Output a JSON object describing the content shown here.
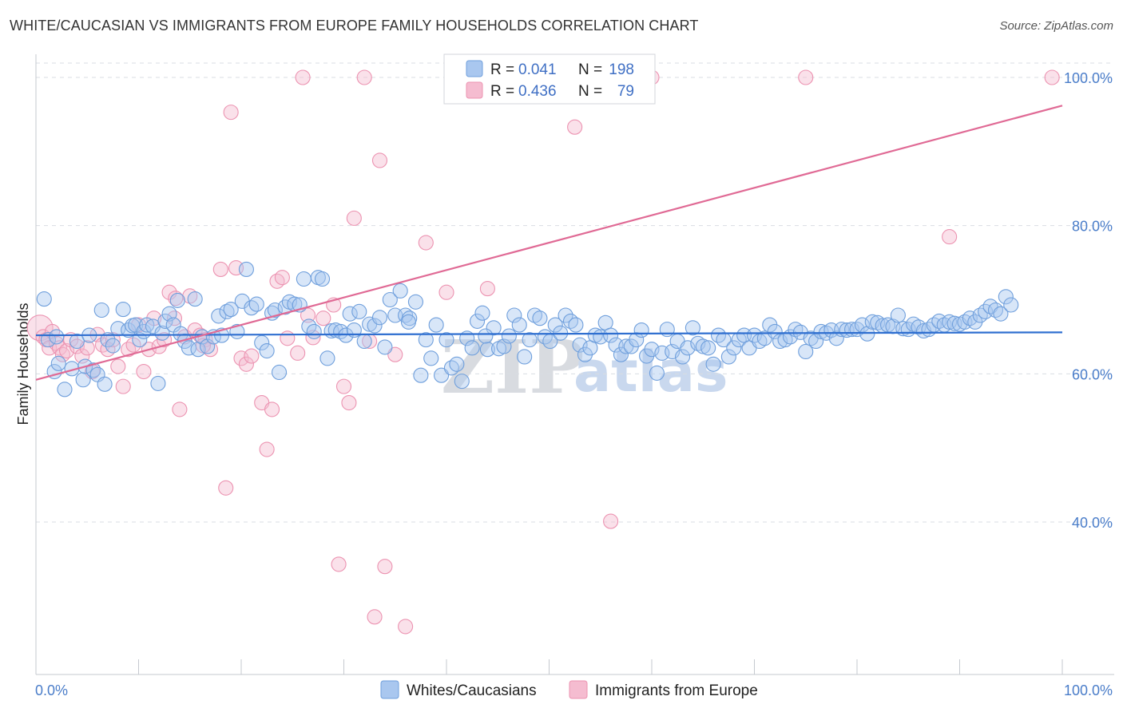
{
  "title": "WHITE/CAUCASIAN VS IMMIGRANTS FROM EUROPE FAMILY HOUSEHOLDS CORRELATION CHART",
  "source": "Source: ZipAtlas.com",
  "watermark": {
    "zip": "ZIP",
    "atlas": "atlas"
  },
  "colors": {
    "blue_fill": "#a9c7ef",
    "blue_stroke": "#6f9fdc",
    "blue_line": "#2f6fd0",
    "pink_fill": "#f5bcd0",
    "pink_stroke": "#ec93b1",
    "pink_line": "#e06a95",
    "grid": "#d9dde3",
    "tick_text": "#4a7dc9"
  },
  "legend": {
    "r_label": "R =",
    "n_label": "N =",
    "series1": {
      "r": "0.041",
      "n": "198"
    },
    "series2": {
      "r": "0.436",
      "n": "79"
    }
  },
  "chart_data": {
    "type": "scatter",
    "title": "WHITE/CAUCASIAN VS IMMIGRANTS FROM EUROPE FAMILY HOUSEHOLDS CORRELATION CHART",
    "xlabel": "",
    "ylabel": "Family Households",
    "xlim": [
      0,
      100
    ],
    "ylim": [
      20,
      102
    ],
    "x_tick_labels": [
      "0.0%",
      "100.0%"
    ],
    "y_tick_labels": [
      "100.0%",
      "80.0%",
      "60.0%",
      "40.0%"
    ],
    "y_ticks": [
      100,
      80,
      60,
      40
    ],
    "grid": true,
    "legend_position": "top-center and bottom",
    "series": [
      {
        "name": "Whites/Caucasians",
        "r": 0.041,
        "n": 198,
        "trend": {
          "x": [
            0,
            100
          ],
          "y": [
            65.2,
            65.6
          ]
        },
        "points": [
          [
            0.8,
            70.1
          ],
          [
            1.2,
            64.6
          ],
          [
            1.8,
            60.3
          ],
          [
            2.0,
            65.0
          ],
          [
            2.2,
            61.4
          ],
          [
            2.8,
            57.9
          ],
          [
            3.5,
            60.7
          ],
          [
            4.0,
            64.4
          ],
          [
            4.6,
            59.2
          ],
          [
            4.8,
            61.0
          ],
          [
            5.2,
            65.2
          ],
          [
            5.6,
            60.5
          ],
          [
            6.0,
            59.9
          ],
          [
            6.4,
            68.6
          ],
          [
            6.7,
            58.6
          ],
          [
            7.0,
            64.6
          ],
          [
            7.5,
            63.8
          ],
          [
            8.0,
            66.1
          ],
          [
            8.5,
            68.7
          ],
          [
            9.0,
            65.9
          ],
          [
            9.4,
            66.5
          ],
          [
            9.7,
            66.6
          ],
          [
            10.1,
            64.6
          ],
          [
            10.5,
            65.7
          ],
          [
            10.8,
            66.6
          ],
          [
            11.4,
            66.4
          ],
          [
            11.9,
            58.7
          ],
          [
            12.3,
            65.5
          ],
          [
            12.6,
            67.1
          ],
          [
            13.0,
            68.1
          ],
          [
            13.4,
            66.6
          ],
          [
            13.8,
            69.9
          ],
          [
            14.1,
            65.4
          ],
          [
            14.5,
            64.4
          ],
          [
            14.9,
            63.5
          ],
          [
            15.5,
            70.1
          ],
          [
            15.8,
            63.3
          ],
          [
            16.2,
            65.0
          ],
          [
            16.7,
            63.7
          ],
          [
            17.3,
            65.0
          ],
          [
            17.8,
            67.8
          ],
          [
            18.1,
            65.2
          ],
          [
            18.6,
            68.4
          ],
          [
            19.0,
            68.7
          ],
          [
            19.6,
            65.7
          ],
          [
            20.1,
            69.8
          ],
          [
            20.5,
            74.1
          ],
          [
            21.0,
            68.9
          ],
          [
            21.5,
            69.4
          ],
          [
            22.0,
            64.2
          ],
          [
            22.5,
            63.1
          ],
          [
            23.0,
            68.2
          ],
          [
            23.3,
            68.6
          ],
          [
            23.7,
            60.2
          ],
          [
            24.3,
            69.0
          ],
          [
            24.7,
            69.7
          ],
          [
            25.2,
            69.4
          ],
          [
            25.7,
            69.3
          ],
          [
            26.1,
            72.8
          ],
          [
            26.6,
            66.4
          ],
          [
            27.1,
            65.7
          ],
          [
            27.5,
            73.0
          ],
          [
            27.9,
            72.8
          ],
          [
            28.4,
            62.1
          ],
          [
            28.8,
            65.8
          ],
          [
            29.2,
            65.9
          ],
          [
            29.7,
            65.7
          ],
          [
            30.2,
            65.2
          ],
          [
            30.6,
            68.1
          ],
          [
            31.0,
            65.9
          ],
          [
            31.5,
            68.4
          ],
          [
            32.0,
            64.4
          ],
          [
            32.5,
            66.7
          ],
          [
            33.0,
            66.5
          ],
          [
            33.5,
            67.6
          ],
          [
            34.0,
            63.6
          ],
          [
            34.5,
            70.0
          ],
          [
            35.0,
            67.9
          ],
          [
            35.5,
            71.2
          ],
          [
            36.0,
            67.9
          ],
          [
            36.4,
            67.5
          ],
          [
            37.0,
            69.7
          ],
          [
            37.5,
            59.8
          ],
          [
            38.0,
            64.6
          ],
          [
            38.5,
            62.1
          ],
          [
            39.0,
            66.6
          ],
          [
            39.5,
            59.8
          ],
          [
            40.0,
            64.6
          ],
          [
            40.5,
            60.8
          ],
          [
            41.0,
            61.3
          ],
          [
            41.5,
            59.0
          ],
          [
            42.0,
            64.8
          ],
          [
            42.5,
            63.5
          ],
          [
            43.0,
            67.1
          ],
          [
            43.5,
            68.2
          ],
          [
            44.0,
            63.3
          ],
          [
            44.6,
            66.2
          ],
          [
            45.1,
            63.4
          ],
          [
            45.6,
            63.7
          ],
          [
            46.1,
            65.1
          ],
          [
            46.6,
            67.9
          ],
          [
            47.1,
            66.6
          ],
          [
            47.6,
            62.3
          ],
          [
            48.1,
            64.6
          ],
          [
            48.6,
            67.9
          ],
          [
            49.1,
            67.5
          ],
          [
            49.6,
            65.0
          ],
          [
            50.1,
            64.4
          ],
          [
            50.6,
            66.6
          ],
          [
            51.1,
            65.5
          ],
          [
            51.6,
            67.9
          ],
          [
            52.1,
            67.1
          ],
          [
            52.6,
            66.6
          ],
          [
            53.0,
            63.9
          ],
          [
            53.5,
            62.6
          ],
          [
            54.0,
            63.5
          ],
          [
            54.5,
            65.2
          ],
          [
            55.0,
            65.0
          ],
          [
            55.5,
            66.9
          ],
          [
            56.0,
            65.2
          ],
          [
            56.5,
            63.9
          ],
          [
            57.0,
            62.6
          ],
          [
            57.5,
            63.7
          ],
          [
            58.0,
            63.7
          ],
          [
            58.5,
            64.6
          ],
          [
            59.0,
            65.9
          ],
          [
            59.5,
            62.4
          ],
          [
            60.0,
            63.3
          ],
          [
            60.5,
            60.1
          ],
          [
            61.0,
            62.8
          ],
          [
            61.5,
            66.0
          ],
          [
            62.0,
            63.0
          ],
          [
            62.5,
            64.4
          ],
          [
            63.0,
            62.3
          ],
          [
            63.5,
            63.5
          ],
          [
            64.0,
            66.2
          ],
          [
            64.5,
            64.1
          ],
          [
            65.0,
            63.7
          ],
          [
            65.5,
            63.5
          ],
          [
            66.0,
            61.3
          ],
          [
            66.5,
            65.2
          ],
          [
            67.0,
            64.6
          ],
          [
            67.5,
            62.3
          ],
          [
            68.0,
            63.5
          ],
          [
            68.5,
            64.6
          ],
          [
            69.0,
            65.2
          ],
          [
            69.5,
            63.5
          ],
          [
            70.0,
            65.2
          ],
          [
            70.5,
            64.4
          ],
          [
            71.0,
            64.8
          ],
          [
            71.5,
            66.6
          ],
          [
            72.0,
            65.7
          ],
          [
            72.5,
            64.4
          ],
          [
            73.0,
            64.6
          ],
          [
            73.5,
            65.0
          ],
          [
            74.0,
            66.0
          ],
          [
            74.5,
            65.6
          ],
          [
            75.0,
            63.0
          ],
          [
            75.5,
            64.8
          ],
          [
            76.0,
            64.4
          ],
          [
            76.5,
            65.7
          ],
          [
            77.0,
            65.5
          ],
          [
            77.5,
            65.9
          ],
          [
            78.0,
            64.8
          ],
          [
            78.5,
            66.0
          ],
          [
            79.0,
            65.9
          ],
          [
            79.5,
            66.0
          ],
          [
            80.0,
            66.0
          ],
          [
            80.5,
            66.6
          ],
          [
            81.0,
            65.4
          ],
          [
            81.5,
            67.0
          ],
          [
            82.0,
            66.9
          ],
          [
            82.5,
            66.5
          ],
          [
            83.0,
            66.6
          ],
          [
            83.5,
            66.4
          ],
          [
            84.0,
            67.9
          ],
          [
            84.5,
            66.1
          ],
          [
            85.0,
            66.0
          ],
          [
            85.5,
            66.7
          ],
          [
            86.0,
            66.3
          ],
          [
            86.5,
            65.8
          ],
          [
            87.0,
            66.0
          ],
          [
            87.5,
            66.6
          ],
          [
            88.0,
            67.1
          ],
          [
            88.5,
            66.6
          ],
          [
            89.0,
            67.0
          ],
          [
            89.5,
            66.8
          ],
          [
            90.0,
            66.7
          ],
          [
            90.5,
            67.0
          ],
          [
            91.0,
            67.5
          ],
          [
            91.5,
            67.0
          ],
          [
            92.0,
            67.9
          ],
          [
            92.5,
            68.4
          ],
          [
            93.0,
            69.1
          ],
          [
            93.5,
            68.6
          ],
          [
            94.0,
            68.1
          ],
          [
            94.5,
            70.4
          ],
          [
            95.0,
            69.3
          ],
          [
            36.3,
            67.0
          ],
          [
            43.8,
            65.1
          ]
        ]
      },
      {
        "name": "Immigrants from Europe",
        "r": 0.436,
        "n": 79,
        "trend": {
          "x": [
            0,
            100
          ],
          "y": [
            59.2,
            96.2
          ]
        },
        "points": [
          [
            0.4,
            66.2
          ],
          [
            0.7,
            65.0
          ],
          [
            1.0,
            64.6
          ],
          [
            1.3,
            63.5
          ],
          [
            1.6,
            65.7
          ],
          [
            2.0,
            64.1
          ],
          [
            2.3,
            63.5
          ],
          [
            2.6,
            62.6
          ],
          [
            3.0,
            63.1
          ],
          [
            3.4,
            64.6
          ],
          [
            4.0,
            63.7
          ],
          [
            4.5,
            62.4
          ],
          [
            5.0,
            63.5
          ],
          [
            5.5,
            60.3
          ],
          [
            6.0,
            65.3
          ],
          [
            6.5,
            63.9
          ],
          [
            7.0,
            63.3
          ],
          [
            7.5,
            64.6
          ],
          [
            8.0,
            61.0
          ],
          [
            8.5,
            58.3
          ],
          [
            9.0,
            63.3
          ],
          [
            9.5,
            63.9
          ],
          [
            10.0,
            66.6
          ],
          [
            10.5,
            60.3
          ],
          [
            11.0,
            63.3
          ],
          [
            11.5,
            67.5
          ],
          [
            12.0,
            63.7
          ],
          [
            12.5,
            64.6
          ],
          [
            13.0,
            71.0
          ],
          [
            13.5,
            67.5
          ],
          [
            14.0,
            55.2
          ],
          [
            14.5,
            65.0
          ],
          [
            15.0,
            70.5
          ],
          [
            15.5,
            65.9
          ],
          [
            16.0,
            65.2
          ],
          [
            16.5,
            64.6
          ],
          [
            17.0,
            63.3
          ],
          [
            18.0,
            74.1
          ],
          [
            18.5,
            44.6
          ],
          [
            19.0,
            95.3
          ],
          [
            19.5,
            74.3
          ],
          [
            20.0,
            62.1
          ],
          [
            20.5,
            61.3
          ],
          [
            21.0,
            62.4
          ],
          [
            22.0,
            56.1
          ],
          [
            22.5,
            49.8
          ],
          [
            23.0,
            55.2
          ],
          [
            23.5,
            72.5
          ],
          [
            24.0,
            73.0
          ],
          [
            24.5,
            64.8
          ],
          [
            25.5,
            62.8
          ],
          [
            26.0,
            100.0
          ],
          [
            26.5,
            67.9
          ],
          [
            27.0,
            64.9
          ],
          [
            28.0,
            67.5
          ],
          [
            29.0,
            69.3
          ],
          [
            29.5,
            34.3
          ],
          [
            30.0,
            58.3
          ],
          [
            30.5,
            56.1
          ],
          [
            31.0,
            81.0
          ],
          [
            32.0,
            100.0
          ],
          [
            32.5,
            64.4
          ],
          [
            33.0,
            27.2
          ],
          [
            33.5,
            88.8
          ],
          [
            34.0,
            34.0
          ],
          [
            35.0,
            62.6
          ],
          [
            36.0,
            25.9
          ],
          [
            38.0,
            77.7
          ],
          [
            40.0,
            71.0
          ],
          [
            44.0,
            71.5
          ],
          [
            47.0,
            100.0
          ],
          [
            52.5,
            93.3
          ],
          [
            56.0,
            40.1
          ],
          [
            60.0,
            100.0
          ],
          [
            75.0,
            100.0
          ],
          [
            89.0,
            78.5
          ],
          [
            99.0,
            100.0
          ],
          [
            13.6,
            70.2
          ],
          [
            16.3,
            63.8
          ]
        ]
      }
    ]
  },
  "bottom_legend": [
    "Whites/Caucasians",
    "Immigrants from Europe"
  ]
}
